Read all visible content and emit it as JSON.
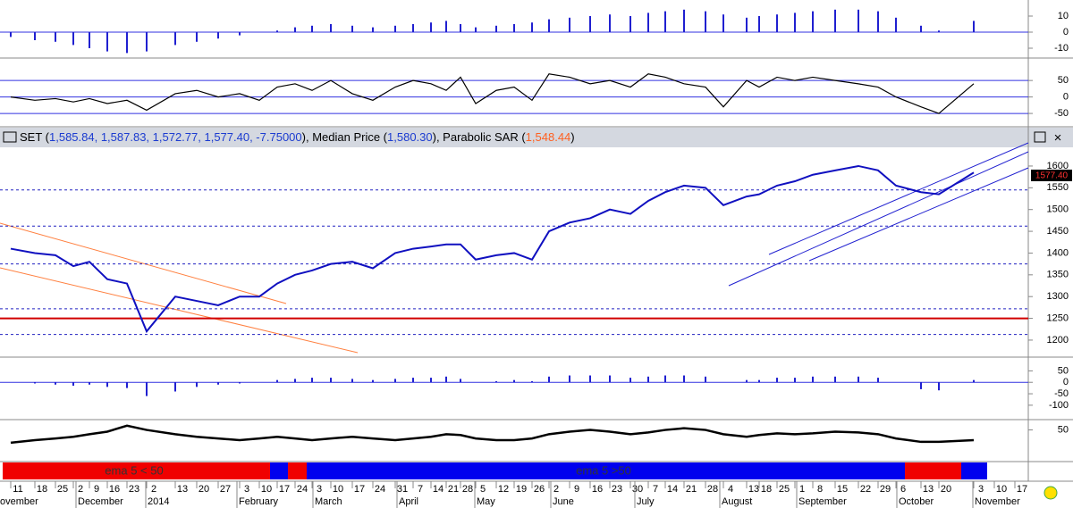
{
  "header": {
    "parts": [
      "SET (",
      "1,585.84, 1,587.83, 1,572.77, 1,577.40, -7.75000",
      "), Median Price (",
      "1,580.30",
      "), Parabolic SAR (",
      "1,548.44",
      ")"
    ]
  },
  "panels": [
    {
      "type": "histogram",
      "ylim": [
        -15,
        20
      ],
      "yticks": [
        10,
        0,
        -10
      ],
      "color": "#2020d0",
      "values": [
        -3,
        -5,
        -6,
        -8,
        -10,
        -12,
        -13,
        -12,
        -8,
        -6,
        -4,
        -2,
        0,
        1,
        3,
        4,
        5,
        4,
        3,
        4,
        5,
        6,
        7,
        5,
        3,
        4,
        5,
        6,
        8,
        9,
        10,
        11,
        10,
        12,
        13,
        14,
        13,
        11,
        9,
        10,
        11,
        12,
        13,
        14,
        14,
        13,
        9,
        4,
        1,
        7,
        null,
        null
      ]
    },
    {
      "type": "line",
      "ylim": [
        -85,
        110
      ],
      "yticks": [
        50,
        0,
        -50
      ],
      "grid": true,
      "color": "#000000",
      "values": [
        0,
        -10,
        -5,
        -15,
        -5,
        -20,
        -10,
        -40,
        10,
        20,
        0,
        10,
        -10,
        30,
        40,
        20,
        50,
        10,
        -10,
        30,
        50,
        40,
        20,
        60,
        -20,
        20,
        30,
        -10,
        70,
        60,
        40,
        50,
        30,
        70,
        60,
        40,
        30,
        -30,
        50,
        30,
        60,
        50,
        60,
        50,
        40,
        30,
        0,
        -30,
        -50,
        40,
        null,
        null
      ]
    },
    {
      "type": "price",
      "ylim": [
        1165,
        1643
      ],
      "yticks": [
        1600,
        1550,
        1500,
        1450,
        1400,
        1350,
        1300,
        1250,
        1200
      ],
      "color": "#1010c0",
      "values": [
        1410,
        1400,
        1395,
        1370,
        1380,
        1340,
        1330,
        1220,
        1300,
        1290,
        1280,
        1300,
        1300,
        1330,
        1350,
        1360,
        1375,
        1380,
        1365,
        1400,
        1410,
        1415,
        1420,
        1420,
        1385,
        1395,
        1400,
        1385,
        1450,
        1470,
        1480,
        1500,
        1490,
        1520,
        1540,
        1555,
        1550,
        1510,
        1530,
        1535,
        1555,
        1565,
        1580,
        1590,
        1600,
        1590,
        1555,
        1540,
        1535,
        1585,
        null,
        null
      ],
      "levels": [
        1545,
        1462,
        1375,
        1272,
        1213
      ],
      "red_level": 1250,
      "last_label": "1577.40"
    },
    {
      "type": "histogram",
      "ylim": [
        -155,
        110
      ],
      "yticks": [
        50,
        0,
        -50,
        -100
      ],
      "color": "#2020d0",
      "values": [
        0,
        -5,
        -10,
        -15,
        -10,
        -20,
        -25,
        -60,
        -40,
        -20,
        -10,
        -5,
        0,
        10,
        15,
        20,
        20,
        15,
        10,
        15,
        20,
        20,
        25,
        15,
        0,
        5,
        10,
        5,
        25,
        30,
        30,
        30,
        20,
        25,
        30,
        30,
        25,
        0,
        10,
        10,
        20,
        20,
        25,
        25,
        25,
        20,
        0,
        -30,
        -35,
        10,
        null,
        null
      ]
    },
    {
      "type": "line",
      "ylim": [
        15,
        60
      ],
      "yticks": [
        50
      ],
      "color": "#000000",
      "values": [
        35,
        38,
        40,
        42,
        45,
        48,
        55,
        50,
        45,
        42,
        40,
        38,
        40,
        42,
        40,
        38,
        40,
        42,
        40,
        38,
        40,
        42,
        45,
        44,
        40,
        38,
        38,
        40,
        45,
        48,
        50,
        48,
        45,
        47,
        50,
        52,
        50,
        45,
        42,
        44,
        46,
        45,
        46,
        48,
        47,
        45,
        40,
        36,
        36,
        38,
        null,
        null
      ]
    }
  ],
  "ribbon": {
    "labels": [
      "ema 5 < 50",
      "ema 5 >50"
    ]
  },
  "dates": [
    "11",
    "18",
    "25",
    "2",
    "9",
    "16",
    "23",
    "2",
    "13",
    "20",
    "27",
    "3",
    "10",
    "17",
    "24",
    "3",
    "10",
    "17",
    "24",
    "31",
    "7",
    "14",
    "21",
    "28",
    "5",
    "12",
    "19",
    "26",
    "2",
    "9",
    "16",
    "23",
    "30",
    "7",
    "14",
    "21",
    "28",
    "4",
    "13",
    "18",
    "25",
    "1",
    "8",
    "15",
    "22",
    "29",
    "6",
    "13",
    "20",
    "3",
    "10",
    "17"
  ],
  "months": [
    "ovember",
    "December",
    "2014",
    "February",
    "March",
    "April",
    "May",
    "June",
    "July",
    "August",
    "September",
    "October",
    "November"
  ]
}
